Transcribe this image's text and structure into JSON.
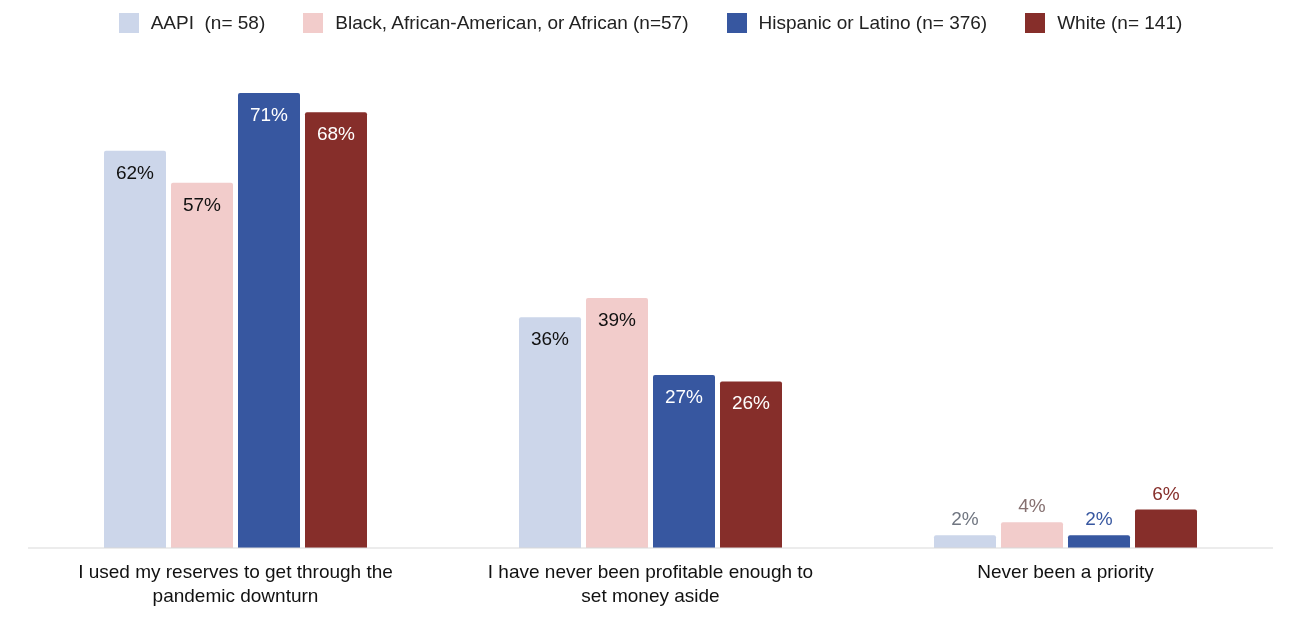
{
  "chart_data": {
    "type": "bar",
    "categories": [
      "I used my reserves to get through the pandemic downturn",
      "I have never been profitable enough to set money aside",
      "Never been a priority"
    ],
    "series": [
      {
        "name": "AAPI  (n= 58)",
        "color": "#ccd6ea",
        "values": [
          62,
          36,
          2
        ],
        "value_labels": [
          "62%",
          "36%",
          "2%"
        ]
      },
      {
        "name": "Black, African-American, or African (n=57)",
        "color": "#f2cccb",
        "values": [
          57,
          39,
          4
        ],
        "value_labels": [
          "57%",
          "39%",
          "4%"
        ]
      },
      {
        "name": "Hispanic or Latino (n= 376)",
        "color": "#3757a0",
        "values": [
          71,
          27,
          2
        ],
        "value_labels": [
          "71%",
          "27%",
          "2%"
        ]
      },
      {
        "name": "White (n= 141)",
        "color": "#862e2a",
        "values": [
          68,
          26,
          6
        ],
        "value_labels": [
          "68%",
          "26%",
          "6%"
        ]
      }
    ],
    "legend": "top",
    "grid": false
  }
}
